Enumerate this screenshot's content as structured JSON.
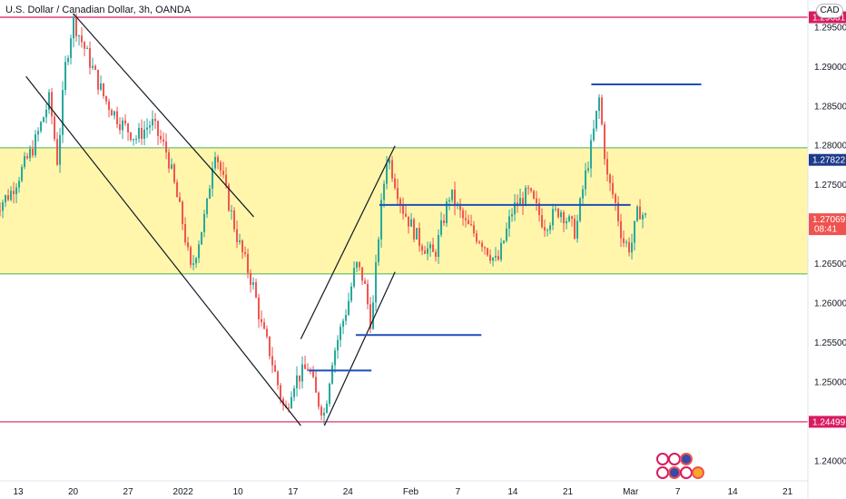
{
  "chart_title": "U.S. Dollar / Canadian Dollar, 3h, OANDA",
  "currency": "CAD",
  "countdown": "08:41",
  "colors": {
    "up": "#26a69a",
    "down": "#ef5350",
    "zone": "#fff59d",
    "zone_border": "#4caf50",
    "level_line": "#d81b60",
    "blue_line": "#1e50b8",
    "trend_line": "#131722"
  },
  "chart_data": {
    "type": "candlestick",
    "ylim": [
      1.2375,
      1.2985
    ],
    "y_ticks": [
      "1.29500",
      "1.29000",
      "1.28500",
      "1.28000",
      "1.27500",
      "1.27000",
      "1.26500",
      "1.26000",
      "1.25500",
      "1.25000",
      "1.24500",
      "1.24000"
    ],
    "x_ticks": [
      "13",
      "20",
      "27",
      "2022",
      "10",
      "17",
      "24",
      "Feb",
      "7",
      "14",
      "21",
      "Mar",
      "7",
      "14",
      "21"
    ],
    "price_labels": [
      {
        "text": "1.29631",
        "value": 1.29631,
        "color": "#d81b60"
      },
      {
        "text": "1.27822",
        "value": 1.27822,
        "color": "#1e3a8a"
      },
      {
        "text": "1.27069",
        "value": 1.27069,
        "color": "#ef5350"
      },
      {
        "text": "1.24499",
        "value": 1.24499,
        "color": "#d81b60"
      }
    ],
    "horizontal_levels": [
      1.29631,
      1.24499
    ],
    "zone": [
      1.26375,
      1.27975
    ],
    "blue_segments": [
      {
        "x0": "Jan 19",
        "x1": "Jan 27",
        "y": 1.2515
      },
      {
        "x0": "Jan 25",
        "x1": "Feb 10",
        "y": 1.256
      },
      {
        "x0": "Jan 28",
        "x1": "Mar 1",
        "y": 1.2725
      },
      {
        "x0": "Feb 24",
        "x1": "Mar 10",
        "y": 1.2878
      }
    ],
    "trend_lines": [
      {
        "x0": "Dec 20",
        "y0": 1.2968,
        "x1": "Jan 12",
        "y1": 1.271
      },
      {
        "x0": "Dec 14",
        "y0": 1.2888,
        "x1": "Jan 18",
        "y1": 1.2445
      },
      {
        "x0": "Jan 18",
        "y0": 1.2555,
        "x1": "Jan 30",
        "y1": 1.28
      },
      {
        "x0": "Jan 21",
        "y0": 1.2445,
        "x1": "Jan 30",
        "y1": 1.264
      }
    ],
    "price_path": [
      [
        "Dec 10",
        1.272
      ],
      [
        "Dec 12",
        1.274
      ],
      [
        "Dec 15",
        1.28
      ],
      [
        "Dec 17",
        1.286
      ],
      [
        "Dec 18",
        1.278
      ],
      [
        "Dec 19",
        1.29
      ],
      [
        "Dec 20",
        1.296
      ],
      [
        "Dec 22",
        1.291
      ],
      [
        "Dec 24",
        1.286
      ],
      [
        "Dec 26",
        1.283
      ],
      [
        "Dec 28",
        1.281
      ],
      [
        "Dec 30",
        1.283
      ],
      [
        "Jan 1",
        1.279
      ],
      [
        "Jan 3",
        1.27
      ],
      [
        "Jan 4",
        1.264
      ],
      [
        "Jan 6",
        1.272
      ],
      [
        "Jan 7",
        1.28
      ],
      [
        "Jan 8",
        1.276
      ],
      [
        "Jan 10",
        1.268
      ],
      [
        "Jan 12",
        1.262
      ],
      [
        "Jan 13",
        1.257
      ],
      [
        "Jan 14",
        1.254
      ],
      [
        "Jan 15",
        1.25
      ],
      [
        "Jan 16",
        1.246
      ],
      [
        "Jan 17",
        1.25
      ],
      [
        "Jan 19",
        1.252
      ],
      [
        "Jan 20",
        1.248
      ],
      [
        "Jan 21",
        1.246
      ],
      [
        "Jan 22",
        1.253
      ],
      [
        "Jan 24",
        1.26
      ],
      [
        "Jan 25",
        1.265
      ],
      [
        "Jan 26",
        1.263
      ],
      [
        "Jan 27",
        1.257
      ],
      [
        "Jan 28",
        1.27
      ],
      [
        "Jan 29",
        1.279
      ],
      [
        "Jan 31",
        1.272
      ],
      [
        "Feb 2",
        1.268
      ],
      [
        "Feb 4",
        1.266
      ],
      [
        "Feb 6",
        1.274
      ],
      [
        "Feb 8",
        1.27
      ],
      [
        "Feb 10",
        1.268
      ],
      [
        "Feb 12",
        1.265
      ],
      [
        "Feb 14",
        1.272
      ],
      [
        "Feb 16",
        1.274
      ],
      [
        "Feb 18",
        1.27
      ],
      [
        "Feb 20",
        1.272
      ],
      [
        "Feb 22",
        1.269
      ],
      [
        "Feb 23",
        1.275
      ],
      [
        "Feb 24",
        1.28
      ],
      [
        "Feb 25",
        1.286
      ],
      [
        "Feb 26",
        1.276
      ],
      [
        "Feb 27",
        1.273
      ],
      [
        "Feb 28",
        1.268
      ],
      [
        "Mar 1",
        1.267
      ],
      [
        "Mar 2",
        1.272
      ],
      [
        "Mar 3",
        1.2707
      ]
    ]
  }
}
